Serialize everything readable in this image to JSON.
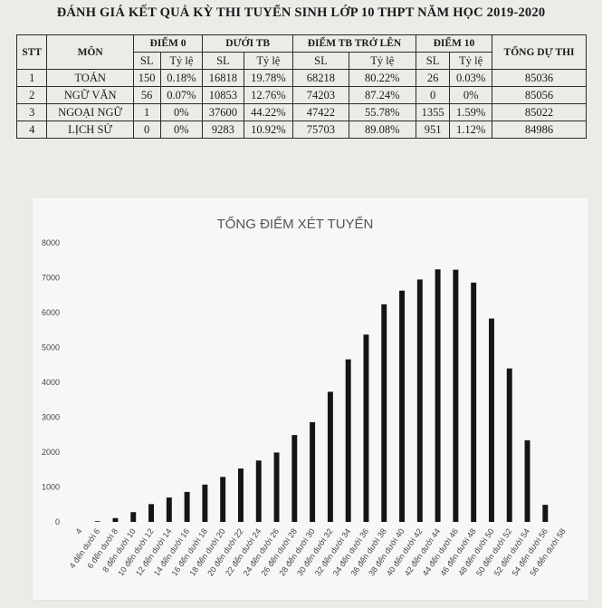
{
  "page": {
    "title": "ĐÁNH GIÁ KẾT QUẢ KỲ THI TUYỂN SINH LỚP 10 THPT NĂM HỌC 2019-2020"
  },
  "table": {
    "headers": {
      "stt": "STT",
      "mon": "MÔN",
      "diem0": "ĐIỂM 0",
      "duoitb": "DƯỚI TB",
      "trenTb": "ĐIỂM TB TRỞ LÊN",
      "diem10": "ĐIỂM 10",
      "tong": "TỔNG DỰ THI",
      "sl": "SL",
      "tyle": "Tỷ lệ"
    },
    "rows": [
      {
        "stt": "1",
        "mon": "TOÁN",
        "d0_sl": "150",
        "d0_tl": "0.18%",
        "dtb_sl": "16818",
        "dtb_tl": "19.78%",
        "ttb_sl": "68218",
        "ttb_tl": "80.22%",
        "d10_sl": "26",
        "d10_tl": "0.03%",
        "tong": "85036"
      },
      {
        "stt": "2",
        "mon": "NGỮ VĂN",
        "d0_sl": "56",
        "d0_tl": "0.07%",
        "dtb_sl": "10853",
        "dtb_tl": "12.76%",
        "ttb_sl": "74203",
        "ttb_tl": "87.24%",
        "d10_sl": "0",
        "d10_tl": "0%",
        "tong": "85056"
      },
      {
        "stt": "3",
        "mon": "NGOẠI NGỮ",
        "d0_sl": "1",
        "d0_tl": "0%",
        "dtb_sl": "37600",
        "dtb_tl": "44.22%",
        "ttb_sl": "47422",
        "ttb_tl": "55.78%",
        "d10_sl": "1355",
        "d10_tl": "1.59%",
        "tong": "85022"
      },
      {
        "stt": "4",
        "mon": "LỊCH SỬ",
        "d0_sl": "0",
        "d0_tl": "0%",
        "dtb_sl": "9283",
        "dtb_tl": "10.92%",
        "ttb_sl": "75703",
        "ttb_tl": "89.08%",
        "d10_sl": "951",
        "d10_tl": "1.12%",
        "tong": "84986"
      }
    ]
  },
  "chart_data": {
    "type": "bar",
    "title": "TỔNG ĐIỂM XÉT TUYỂN",
    "xlabel": "",
    "ylabel": "",
    "ylim": [
      0,
      8000
    ],
    "yticks": [
      "0",
      "1000",
      "2000",
      "3000",
      "4000",
      "5000",
      "6000",
      "7000",
      "8000"
    ],
    "grid": false,
    "legend": "none",
    "bar_color": "#151515",
    "categories": [
      "4",
      "4 đến dưới 6",
      "6 đến dưới 8",
      "8 đến dưới 10",
      "10 đến dưới 12",
      "12 đến dưới 14",
      "14 đến dưới 16",
      "16 đến dưới 18",
      "18 đến dưới 20",
      "20 đến dưới 22",
      "22 đến dưới 24",
      "24 đến dưới 26",
      "26 đến dưới 28",
      "28 đến dưới 30",
      "30 đến dưới 32",
      "32 đến dưới 34",
      "34 đến dưới 36",
      "36 đến dưới 38",
      "38 đến dưới 40",
      "40 đến dưới 42",
      "42 đến dưới 44",
      "44 đến dưới 46",
      "46 đến dưới 48",
      "48 đến dưới 50",
      "50 đến dưới 52",
      "52 đến dưới 54",
      "54 đến dưới 56",
      "56 đến dưới 58"
    ],
    "values": [
      0,
      20,
      110,
      280,
      510,
      700,
      860,
      1070,
      1290,
      1530,
      1760,
      1990,
      2490,
      2860,
      3730,
      4660,
      5370,
      6240,
      6630,
      6950,
      7240,
      7230,
      6860,
      5830,
      4400,
      2340,
      490,
      0
    ]
  }
}
